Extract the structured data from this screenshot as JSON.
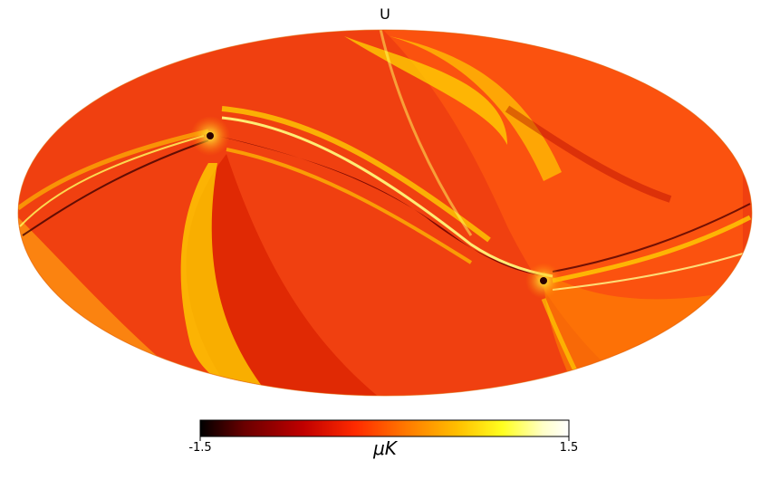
{
  "title": "U",
  "colorbar": {
    "min_label": "-1.5",
    "max_label": "1.5",
    "unit": "μK",
    "colormap": [
      "#000000",
      "#6a0000",
      "#c00000",
      "#ff2a00",
      "#ff7a00",
      "#ffc000",
      "#ffff20",
      "#ffffc8",
      "#ffffff"
    ]
  },
  "projection": "mollweide"
}
